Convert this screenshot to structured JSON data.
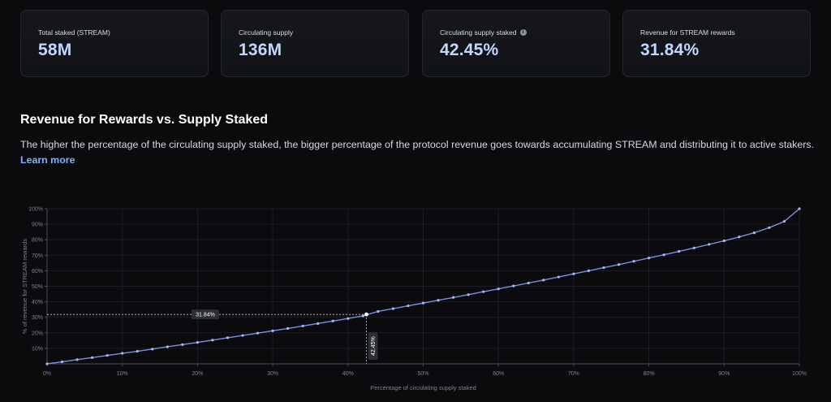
{
  "stats": [
    {
      "label": "Total staked (STREAM)",
      "value": "58M",
      "info": false
    },
    {
      "label": "Circulating supply",
      "value": "136M",
      "info": false
    },
    {
      "label": "Circulating supply staked",
      "value": "42.45%",
      "info": true
    },
    {
      "label": "Revenue for STREAM rewards",
      "value": "31.84%",
      "info": false
    }
  ],
  "section": {
    "title": "Revenue for Rewards vs. Supply Staked",
    "description": "The higher the percentage of the circulating supply staked, the bigger percentage of the protocol revenue goes towards accumulating STREAM and distributing it to active stakers.",
    "learn_more": "Learn more"
  },
  "colors": {
    "line": "#7b8fe6",
    "stat_value": "#c2d7ff",
    "link": "#7fb0ff"
  },
  "chart_data": {
    "type": "line",
    "xlabel": "Percentage of circulating supply staked",
    "ylabel": "% of revenue for STREAM rewards",
    "xlim": [
      0,
      100
    ],
    "ylim": [
      0,
      100
    ],
    "xticks": [
      "0%",
      "10%",
      "20%",
      "30%",
      "40%",
      "50%",
      "60%",
      "70%",
      "80%",
      "90%",
      "100%"
    ],
    "yticks": [
      "10%",
      "20%",
      "30%",
      "40%",
      "50%",
      "60%",
      "70%",
      "80%",
      "90%",
      "100%"
    ],
    "series": [
      {
        "x": [
          0,
          2,
          4,
          6,
          8,
          10,
          12,
          14,
          16,
          18,
          20,
          22,
          24,
          26,
          28,
          30,
          32,
          34,
          36,
          38,
          40,
          42,
          44,
          46,
          48,
          50,
          52,
          54,
          56,
          58,
          60,
          62,
          64,
          66,
          68,
          70,
          72,
          74,
          76,
          78,
          80,
          82,
          84,
          86,
          88,
          90,
          92,
          94,
          96,
          98,
          100
        ],
        "y": [
          0,
          1.3,
          2.7,
          4.0,
          5.4,
          6.8,
          8.1,
          9.5,
          11.0,
          12.4,
          13.8,
          15.3,
          16.8,
          18.3,
          19.8,
          21.3,
          22.8,
          24.4,
          26.0,
          27.6,
          29.2,
          30.9,
          33.8,
          35.6,
          37.4,
          39.2,
          41.0,
          42.8,
          44.6,
          46.5,
          48.3,
          50.2,
          52.1,
          54.0,
          56.0,
          58.0,
          60.0,
          62.0,
          64.0,
          66.1,
          68.2,
          70.3,
          72.5,
          74.7,
          77.0,
          79.3,
          81.8,
          84.5,
          87.8,
          91.8,
          100
        ]
      }
    ],
    "annotation": {
      "x": 42.45,
      "y": 31.84,
      "x_label": "42.45%",
      "y_label": "31.84%"
    },
    "grid": true,
    "legend": "none"
  }
}
